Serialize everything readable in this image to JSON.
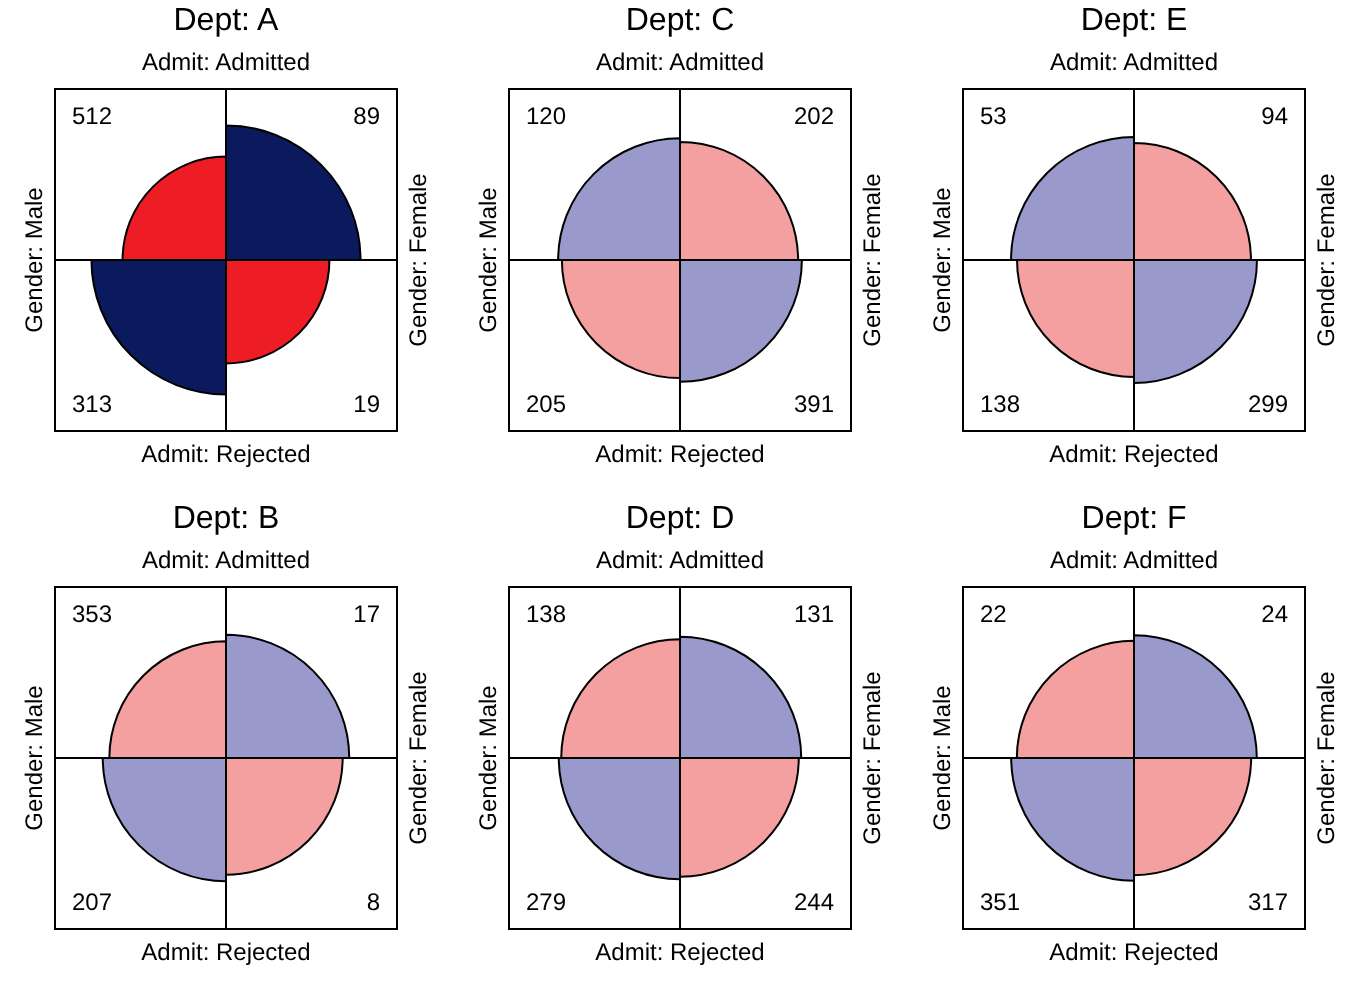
{
  "chart_data": [
    {
      "type": "other",
      "title": "Dept: A",
      "x2label": "Admit: Admitted",
      "xlabel": "Admit: Rejected",
      "ylabel": "Gender: Male",
      "y2label": "Gender: Female",
      "values": [
        512,
        89,
        313,
        19
      ],
      "colors": [
        "#ee1c25",
        "#0b1a5c",
        "#0b1a5c",
        "#ee1c25"
      ],
      "data_labels": true
    },
    {
      "type": "other",
      "title": "Dept: C",
      "x2label": "Admit: Admitted",
      "xlabel": "Admit: Rejected",
      "ylabel": "Gender: Male",
      "y2label": "Gender: Female",
      "values": [
        120,
        202,
        205,
        391
      ],
      "colors": [
        "#9999cc",
        "#f4a0a0",
        "#f4a0a0",
        "#9999cc"
      ],
      "data_labels": true
    },
    {
      "type": "other",
      "title": "Dept: E",
      "x2label": "Admit: Admitted",
      "xlabel": "Admit: Rejected",
      "ylabel": "Gender: Male",
      "y2label": "Gender: Female",
      "values": [
        53,
        94,
        138,
        299
      ],
      "colors": [
        "#9999cc",
        "#f4a0a0",
        "#f4a0a0",
        "#9999cc"
      ],
      "data_labels": true
    },
    {
      "type": "other",
      "title": "Dept: B",
      "x2label": "Admit: Admitted",
      "xlabel": "Admit: Rejected",
      "ylabel": "Gender: Male",
      "y2label": "Gender: Female",
      "values": [
        353,
        17,
        207,
        8
      ],
      "colors": [
        "#f4a0a0",
        "#9999cc",
        "#9999cc",
        "#f4a0a0"
      ],
      "data_labels": true
    },
    {
      "type": "other",
      "title": "Dept: D",
      "x2label": "Admit: Admitted",
      "xlabel": "Admit: Rejected",
      "ylabel": "Gender: Male",
      "y2label": "Gender: Female",
      "values": [
        138,
        131,
        279,
        244
      ],
      "colors": [
        "#f4a0a0",
        "#9999cc",
        "#9999cc",
        "#f4a0a0"
      ],
      "data_labels": true
    },
    {
      "type": "other",
      "title": "Dept: F",
      "x2label": "Admit: Admitted",
      "xlabel": "Admit: Rejected",
      "ylabel": "Gender: Male",
      "y2label": "Gender: Female",
      "values": [
        22,
        24,
        351,
        317
      ],
      "colors": [
        "#f4a0a0",
        "#9999cc",
        "#9999cc",
        "#f4a0a0"
      ],
      "data_labels": true
    }
  ]
}
